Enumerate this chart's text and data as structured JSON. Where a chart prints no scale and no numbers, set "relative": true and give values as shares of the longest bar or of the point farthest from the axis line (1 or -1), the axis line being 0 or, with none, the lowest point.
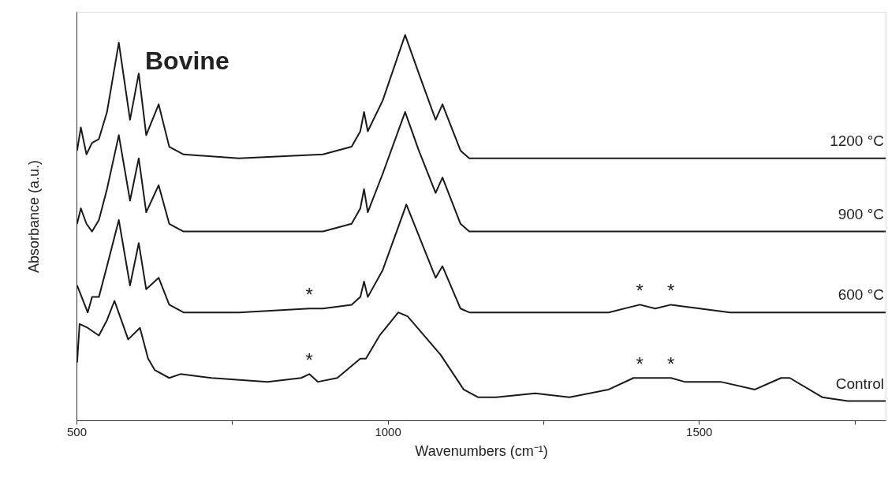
{
  "chart_data": {
    "type": "line",
    "title": "Bovine",
    "xlabel": "Wavenumbers (cm⁻¹)",
    "ylabel": "Absorbance (a.u.)",
    "relative": true,
    "xlim": [
      500,
      1800
    ],
    "xticks": [
      500,
      {
        "value": 750,
        "label": null
      },
      1000,
      {
        "value": 1250,
        "label": null
      },
      1500,
      {
        "value": 1750,
        "label": null
      }
    ],
    "grid": false,
    "legend": false,
    "marker": "none",
    "line_style": "solid",
    "series": [
      {
        "name": "1200 °C",
        "color": "#1a1a1a",
        "x": [
          501,
          507,
          516,
          525,
          536,
          549,
          568,
          586,
          600,
          612,
          632,
          649,
          672,
          761,
          896,
          942,
          956,
          962,
          968,
          992,
          1028,
          1050,
          1077,
          1088,
          1117,
          1131,
          1300,
          1500,
          1800
        ],
        "values": [
          0.7,
          0.76,
          0.69,
          0.72,
          0.73,
          0.8,
          0.98,
          0.78,
          0.9,
          0.74,
          0.82,
          0.71,
          0.69,
          0.68,
          0.69,
          0.71,
          0.75,
          0.8,
          0.75,
          0.83,
          1.0,
          0.9,
          0.78,
          0.82,
          0.7,
          0.68,
          0.68,
          0.68,
          0.68
        ]
      },
      {
        "name": "900 °C",
        "color": "#1a1a1a",
        "x": [
          501,
          507,
          516,
          525,
          536,
          549,
          568,
          586,
          600,
          612,
          632,
          649,
          672,
          761,
          896,
          942,
          956,
          962,
          968,
          992,
          1028,
          1050,
          1077,
          1088,
          1117,
          1131,
          1300,
          1500,
          1800
        ],
        "values": [
          0.51,
          0.55,
          0.51,
          0.49,
          0.52,
          0.6,
          0.74,
          0.57,
          0.68,
          0.54,
          0.61,
          0.51,
          0.49,
          0.49,
          0.49,
          0.51,
          0.55,
          0.6,
          0.54,
          0.64,
          0.8,
          0.7,
          0.59,
          0.63,
          0.51,
          0.49,
          0.49,
          0.49,
          0.49
        ]
      },
      {
        "name": "600 °C",
        "color": "#1a1a1a",
        "x": [
          501,
          518,
          525,
          536,
          549,
          568,
          586,
          600,
          612,
          632,
          649,
          672,
          761,
          874,
          896,
          942,
          956,
          962,
          968,
          992,
          1030,
          1077,
          1088,
          1117,
          1131,
          1355,
          1405,
          1430,
          1455,
          1550,
          1800
        ],
        "values": [
          0.35,
          0.28,
          0.32,
          0.32,
          0.4,
          0.52,
          0.35,
          0.46,
          0.34,
          0.37,
          0.3,
          0.28,
          0.28,
          0.29,
          0.29,
          0.3,
          0.32,
          0.36,
          0.32,
          0.39,
          0.56,
          0.37,
          0.4,
          0.29,
          0.28,
          0.28,
          0.3,
          0.29,
          0.3,
          0.28,
          0.28
        ]
      },
      {
        "name": "Control",
        "color": "#1a1a1a",
        "x": [
          501,
          505,
          518,
          536,
          549,
          561,
          572,
          583,
          602,
          615,
          626,
          649,
          667,
          717,
          807,
          861,
          874,
          888,
          919,
          956,
          965,
          987,
          1017,
          1032,
          1085,
          1122,
          1145,
          1174,
          1237,
          1292,
          1355,
          1395,
          1405,
          1455,
          1477,
          1535,
          1590,
          1632,
          1646,
          1698,
          1739,
          1800
        ],
        "values": [
          0.15,
          0.25,
          0.24,
          0.22,
          0.26,
          0.31,
          0.26,
          0.21,
          0.24,
          0.16,
          0.13,
          0.11,
          0.12,
          0.11,
          0.1,
          0.11,
          0.12,
          0.1,
          0.11,
          0.16,
          0.16,
          0.22,
          0.28,
          0.27,
          0.17,
          0.08,
          0.06,
          0.06,
          0.07,
          0.06,
          0.08,
          0.11,
          0.11,
          0.11,
          0.1,
          0.1,
          0.08,
          0.11,
          0.11,
          0.06,
          0.05,
          0.05
        ]
      }
    ],
    "annotations": [
      {
        "text": "*",
        "x": 874,
        "y": 0.29
      },
      {
        "text": "*",
        "x": 1405,
        "y": 0.3
      },
      {
        "text": "*",
        "x": 1455,
        "y": 0.3
      },
      {
        "text": "*",
        "x": 874,
        "y": 0.12
      },
      {
        "text": "*",
        "x": 1405,
        "y": 0.11
      },
      {
        "text": "*",
        "x": 1455,
        "y": 0.11
      }
    ]
  }
}
